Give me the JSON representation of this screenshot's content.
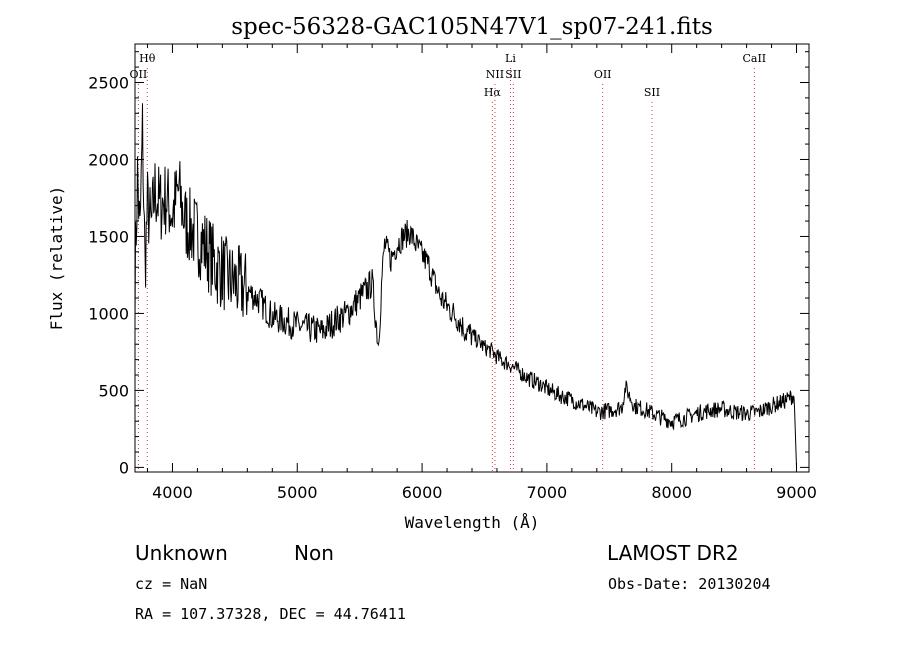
{
  "chart_data": {
    "type": "line",
    "title": "spec-56328-GAC105N47V1_sp07-241.fits",
    "xlabel": "Wavelength (Å)",
    "ylabel": "Flux (relative)",
    "xlim": [
      3700,
      9100
    ],
    "ylim": [
      -30,
      2750
    ],
    "xticks": [
      4000,
      5000,
      6000,
      7000,
      8000,
      9000
    ],
    "yticks": [
      0,
      500,
      1000,
      1500,
      2000,
      2500
    ],
    "grid": false,
    "line_color": "#000000",
    "marker_color": "#d04040",
    "series": [
      {
        "x": [
          3700,
          3720,
          3740,
          3760,
          3780,
          3800,
          3830,
          3860,
          3900,
          3950,
          4000,
          4050,
          4100,
          4150,
          4200,
          4250,
          4300,
          4350,
          4400,
          4450,
          4500,
          4600,
          4700,
          4800,
          4900,
          5000,
          5100,
          5200,
          5300,
          5400,
          5500,
          5600,
          5650,
          5680,
          5700,
          5750,
          5800,
          5850,
          5900,
          5950,
          6000,
          6050,
          6100,
          6150,
          6200,
          6250,
          6300,
          6350,
          6400,
          6450,
          6500,
          6550,
          6600,
          6650,
          6700,
          6750,
          6800,
          6850,
          6900,
          6950,
          7000,
          7100,
          7200,
          7300,
          7400,
          7500,
          7600,
          7630,
          7700,
          7800,
          7900,
          8000,
          8100,
          8200,
          8300,
          8400,
          8500,
          8600,
          8700,
          8800,
          8900,
          8980,
          9000
        ],
        "y": [
          1200,
          1900,
          1500,
          2200,
          1300,
          1700,
          1550,
          1800,
          1700,
          1750,
          1650,
          1800,
          1600,
          1550,
          1500,
          1450,
          1380,
          1300,
          1280,
          1220,
          1200,
          1150,
          1080,
          980,
          950,
          920,
          900,
          880,
          950,
          1000,
          1100,
          1200,
          800,
          1250,
          1450,
          1350,
          1450,
          1500,
          1530,
          1450,
          1380,
          1320,
          1200,
          1100,
          1050,
          1000,
          950,
          880,
          860,
          820,
          780,
          760,
          720,
          690,
          670,
          640,
          610,
          580,
          560,
          540,
          510,
          470,
          440,
          400,
          360,
          370,
          390,
          520,
          400,
          370,
          330,
          300,
          320,
          350,
          370,
          380,
          360,
          350,
          360,
          400,
          430,
          470,
          0
        ]
      }
    ],
    "lines": [
      {
        "wavelength": 3727,
        "label": "OII",
        "row": 2
      },
      {
        "wavelength": 3798,
        "label": "Hθ",
        "row": 1
      },
      {
        "wavelength": 6563,
        "label": "Hα",
        "row": 3
      },
      {
        "wavelength": 6584,
        "label": "NII",
        "row": 2
      },
      {
        "wavelength": 6708,
        "label": "Li",
        "row": 1
      },
      {
        "wavelength": 6731,
        "label": "SII",
        "row": 2
      },
      {
        "wavelength": 7447,
        "label": "OII",
        "row": 2
      },
      {
        "wavelength": 7842,
        "label": "SII",
        "row": 3
      },
      {
        "wavelength": 8662,
        "label": "CaII",
        "row": 1
      }
    ]
  },
  "footer": {
    "class_text": "Unknown",
    "subclass_text": "Non",
    "survey_text": "LAMOST DR2",
    "cz_text": "cz = NaN",
    "obsdate_text": "Obs-Date: 20130204",
    "radec_text": "RA = 107.37328, DEC =  44.76411"
  }
}
